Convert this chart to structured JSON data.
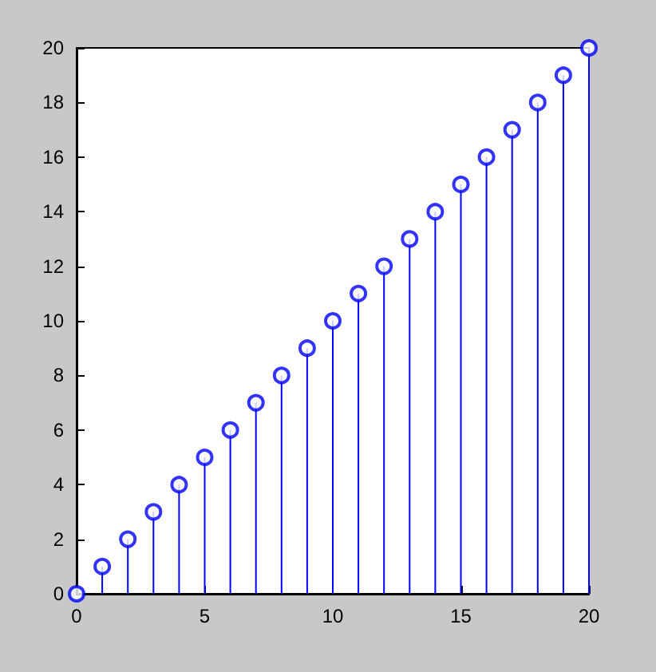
{
  "chart_data": {
    "type": "lollipop",
    "x": [
      0,
      1,
      2,
      3,
      4,
      5,
      6,
      7,
      8,
      9,
      10,
      11,
      12,
      13,
      14,
      15,
      16,
      17,
      18,
      19,
      20
    ],
    "values": [
      0,
      1,
      2,
      3,
      4,
      5,
      6,
      7,
      8,
      9,
      10,
      11,
      12,
      13,
      14,
      15,
      16,
      17,
      18,
      19,
      20
    ],
    "color": "#0000ff",
    "marker": "circle",
    "xlim": [
      0,
      20
    ],
    "xticks": [
      0,
      5,
      10,
      15,
      20
    ],
    "ylim": [
      0,
      20
    ],
    "yticks": [
      0,
      2,
      4,
      6,
      8,
      10,
      12,
      14,
      16,
      18,
      20
    ],
    "grid": false
  }
}
